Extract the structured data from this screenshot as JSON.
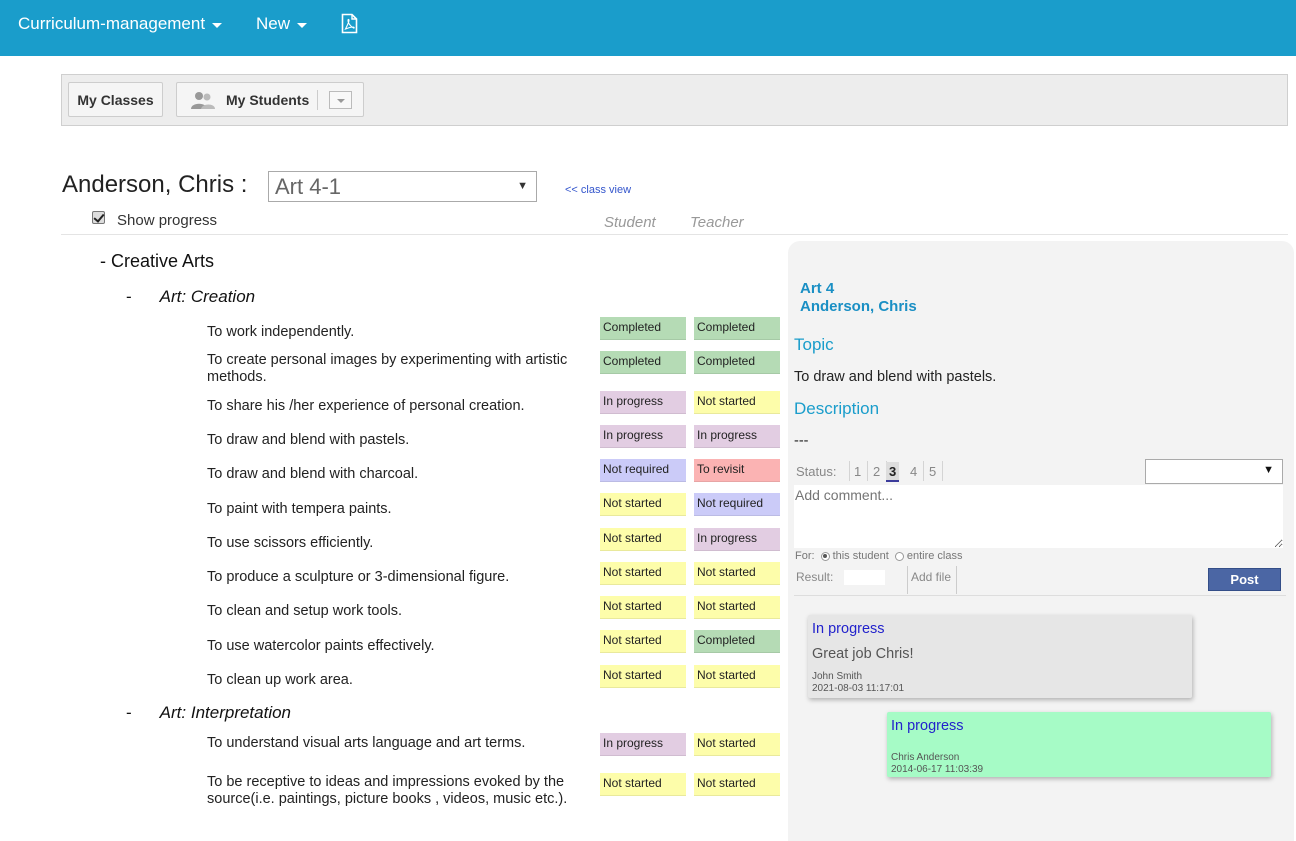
{
  "topbar": {
    "menu1": "Curriculum-management",
    "menu2": "New",
    "pdf_icon": "pdf-file-icon"
  },
  "toolbar": {
    "my_classes": "My Classes",
    "my_students": "My Students"
  },
  "heading": {
    "student_name": "Anderson, Chris :",
    "class_value": "Art 4-1",
    "class_view_link": "<< class view",
    "show_progress": "Show progress",
    "col_student": "Student",
    "col_teacher": "Teacher"
  },
  "tree": {
    "category": "- Creative Arts",
    "sub1": {
      "dash": "-",
      "title": "Art: Creation"
    },
    "sub2": {
      "dash": "-",
      "title": "Art: Interpretation"
    },
    "items": [
      {
        "text": "To work independently.",
        "student": "Completed",
        "teacher": "Completed"
      },
      {
        "text": "To create personal images by experimenting with artistic methods.",
        "student": "Completed",
        "teacher": "Completed"
      },
      {
        "text": "To share his /her experience of personal creation.",
        "student": "In progress",
        "teacher": "Not started"
      },
      {
        "text": "To draw and blend with pastels.",
        "student": "In progress",
        "teacher": "In progress"
      },
      {
        "text": "To draw and blend with charcoal.",
        "student": "Not required",
        "teacher": "To revisit"
      },
      {
        "text": "To paint with tempera paints.",
        "student": "Not started",
        "teacher": "Not required"
      },
      {
        "text": "To use scissors efficiently.",
        "student": "Not started",
        "teacher": "In progress"
      },
      {
        "text": "To produce a sculpture or 3-dimensional figure.",
        "student": "Not started",
        "teacher": "Not started"
      },
      {
        "text": "To clean and setup work tools.",
        "student": "Not started",
        "teacher": "Not started"
      },
      {
        "text": "To use watercolor paints effectively.",
        "student": "Not started",
        "teacher": "Completed"
      },
      {
        "text": "To clean up work area.",
        "student": "Not started",
        "teacher": "Not started"
      },
      {
        "text": "To understand visual arts language and art terms.",
        "student": "In progress",
        "teacher": "Not started"
      },
      {
        "text": "To be receptive to ideas and impressions evoked by the source(i.e. paintings, picture books , videos, music etc.).",
        "student": "Not started",
        "teacher": "Not started"
      }
    ]
  },
  "status_colors": {
    "Completed": "#b5dbb5",
    "In progress": "#e2cde2",
    "Not started": "#fdfdaa",
    "Not required": "#cbcbf8",
    "To revisit": "#fbb3b3"
  },
  "panel": {
    "class_title": "Art 4",
    "student": "Anderson, Chris",
    "topic_label": "Topic",
    "topic_text": "To draw and blend with pastels.",
    "description_label": "Description",
    "description_text": "---",
    "status_label": "Status:",
    "status_levels": [
      "1",
      "2",
      "3",
      "4",
      "5"
    ],
    "status_selected_level": "3",
    "comment_placeholder": "Add comment...",
    "for_label": "For:",
    "for_option1": "this student",
    "for_option2": "entire class",
    "result_label": "Result:",
    "add_file": "Add file",
    "post": "Post",
    "messages": [
      {
        "status": "In progress",
        "text": "Great job Chris!",
        "author": "John Smith",
        "timestamp": "2021-08-03 11:17:01"
      },
      {
        "status": "In progress",
        "text": "",
        "author": "Chris Anderson",
        "timestamp": "2014-06-17 11:03:39"
      }
    ]
  }
}
